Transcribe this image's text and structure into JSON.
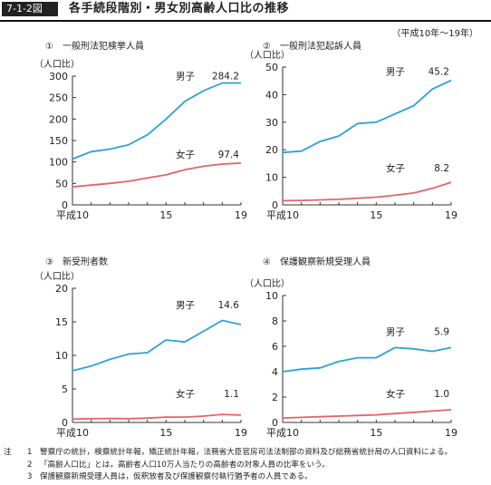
{
  "figure_number": "7-1-2図",
  "figure_title": "各手続段階別・男女別高齢人口比の推移",
  "period": "（平成10年～19年）",
  "colors": {
    "male": "#2aa3d8",
    "female": "#e2636a",
    "axis": "#333333"
  },
  "chart_data": [
    {
      "type": "line",
      "title": "①　一般刑法犯検挙人員",
      "ylabel": "（人口比）",
      "xlim": [
        10,
        19
      ],
      "ylim": [
        0,
        300
      ],
      "yticks": [
        0,
        50,
        100,
        150,
        200,
        250,
        300
      ],
      "xticks": [
        {
          "v": 10,
          "label": "平成10"
        },
        {
          "v": 15,
          "label": "15"
        },
        {
          "v": 19,
          "label": "19"
        }
      ],
      "series": [
        {
          "name": "男子",
          "color": "male",
          "end_label": "284.2",
          "x": [
            10,
            11,
            12,
            13,
            14,
            15,
            16,
            17,
            18,
            19
          ],
          "values": [
            107,
            124,
            130,
            140,
            163,
            200,
            241,
            266,
            284,
            284.2
          ]
        },
        {
          "name": "女子",
          "color": "female",
          "end_label": "97.4",
          "x": [
            10,
            11,
            12,
            13,
            14,
            15,
            16,
            17,
            18,
            19
          ],
          "values": [
            42,
            46,
            50,
            55,
            63,
            70,
            82,
            90,
            95,
            97.4
          ]
        }
      ]
    },
    {
      "type": "line",
      "title": "②　一般刑法犯起訴人員",
      "ylabel": "（人口比）",
      "xlim": [
        10,
        19
      ],
      "ylim": [
        0,
        50
      ],
      "yticks": [
        0,
        10,
        20,
        30,
        40,
        50
      ],
      "xticks": [
        {
          "v": 10,
          "label": "平成10"
        },
        {
          "v": 15,
          "label": "15"
        },
        {
          "v": 19,
          "label": "19"
        }
      ],
      "series": [
        {
          "name": "男子",
          "color": "male",
          "end_label": "45.2",
          "x": [
            10,
            11,
            12,
            13,
            14,
            15,
            16,
            17,
            18,
            19
          ],
          "values": [
            19,
            19.5,
            23,
            25,
            29.5,
            30,
            33,
            36,
            42,
            45.2
          ]
        },
        {
          "name": "女子",
          "color": "female",
          "end_label": "8.2",
          "x": [
            10,
            11,
            12,
            13,
            14,
            15,
            16,
            17,
            18,
            19
          ],
          "values": [
            1.5,
            1.6,
            1.8,
            2.0,
            2.4,
            2.8,
            3.5,
            4.3,
            6.0,
            8.2
          ]
        }
      ]
    },
    {
      "type": "line",
      "title": "③　新受刑者数",
      "ylabel": "（人口比）",
      "xlim": [
        10,
        19
      ],
      "ylim": [
        0,
        20
      ],
      "yticks": [
        0,
        5,
        10,
        15,
        20
      ],
      "xticks": [
        {
          "v": 10,
          "label": "平成10"
        },
        {
          "v": 15,
          "label": "15"
        },
        {
          "v": 19,
          "label": "19"
        }
      ],
      "series": [
        {
          "name": "男子",
          "color": "male",
          "end_label": "14.6",
          "x": [
            10,
            11,
            12,
            13,
            14,
            15,
            16,
            17,
            18,
            19
          ],
          "values": [
            7.7,
            8.4,
            9.4,
            10.2,
            10.4,
            12.3,
            12.0,
            13.6,
            15.2,
            14.6
          ]
        },
        {
          "name": "女子",
          "color": "female",
          "end_label": "1.1",
          "x": [
            10,
            11,
            12,
            13,
            14,
            15,
            16,
            17,
            18,
            19
          ],
          "values": [
            0.5,
            0.55,
            0.6,
            0.55,
            0.65,
            0.8,
            0.8,
            0.95,
            1.2,
            1.1
          ]
        }
      ]
    },
    {
      "type": "line",
      "title": "④　保護観察新規受理人員",
      "ylabel": "（人口比）",
      "xlim": [
        10,
        19
      ],
      "ylim": [
        0,
        10
      ],
      "yticks": [
        0,
        2,
        4,
        6,
        8,
        10
      ],
      "xticks": [
        {
          "v": 10,
          "label": "平成10"
        },
        {
          "v": 15,
          "label": "15"
        },
        {
          "v": 19,
          "label": "19"
        }
      ],
      "series": [
        {
          "name": "男子",
          "color": "male",
          "end_label": "5.9",
          "x": [
            10,
            11,
            12,
            13,
            14,
            15,
            16,
            17,
            18,
            19
          ],
          "values": [
            4.0,
            4.2,
            4.3,
            4.8,
            5.1,
            5.1,
            5.9,
            5.8,
            5.6,
            5.9
          ]
        },
        {
          "name": "女子",
          "color": "female",
          "end_label": "1.0",
          "x": [
            10,
            11,
            12,
            13,
            14,
            15,
            16,
            17,
            18,
            19
          ],
          "values": [
            0.35,
            0.4,
            0.45,
            0.5,
            0.55,
            0.6,
            0.7,
            0.8,
            0.9,
            1.0
          ]
        }
      ]
    }
  ],
  "notes": {
    "head": "注",
    "items": [
      {
        "num": "1",
        "text": "警察庁の統計，検察統計年報，矯正統計年報，法務省大臣官房司法法制部の資料及び総務省統計局の人口資料による。"
      },
      {
        "num": "2",
        "text": "「高齢人口比」とは，高齢者人口10万人当たりの高齢者の対象人員の比率をいう。"
      },
      {
        "num": "3",
        "text": "保護観察新規受理人員は，仮釈放者及び保護観察付執行猶予者の人員である。"
      }
    ]
  }
}
